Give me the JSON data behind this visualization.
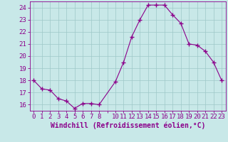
{
  "x_values": [
    0,
    1,
    2,
    3,
    4,
    5,
    6,
    7,
    8,
    10,
    11,
    12,
    13,
    14,
    15,
    16,
    17,
    18,
    19,
    20,
    21,
    22,
    23
  ],
  "y_values": [
    18,
    17.3,
    17.2,
    16.5,
    16.3,
    15.7,
    16.1,
    16.1,
    16.0,
    17.9,
    19.5,
    21.6,
    23.0,
    24.2,
    24.2,
    24.2,
    23.4,
    22.7,
    21.0,
    20.9,
    20.4,
    19.5,
    18.0
  ],
  "line_color": "#8b008b",
  "marker_color": "#8b008b",
  "bg_color": "#c8e8e8",
  "grid_color": "#9ec8c8",
  "axis_color": "#8b008b",
  "tick_label_color": "#8b008b",
  "xlabel": "Windchill (Refroidissement éolien,°C)",
  "xlim": [
    -0.5,
    23.5
  ],
  "ylim": [
    15.5,
    24.5
  ],
  "yticks": [
    16,
    17,
    18,
    19,
    20,
    21,
    22,
    23,
    24
  ],
  "xtick_labels": [
    "0",
    "1",
    "2",
    "3",
    "4",
    "5",
    "6",
    "7",
    "8",
    "",
    "10",
    "11",
    "12",
    "13",
    "14",
    "15",
    "16",
    "17",
    "18",
    "19",
    "20",
    "21",
    "22",
    "23"
  ],
  "font_size": 6.5,
  "xlabel_font_size": 7.0
}
